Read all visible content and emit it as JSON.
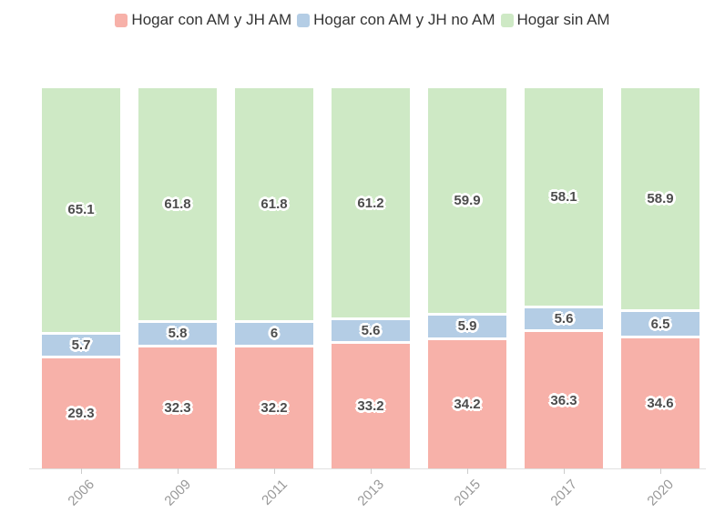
{
  "chart_data": {
    "type": "bar",
    "stacked": true,
    "unit": "percent",
    "title": "",
    "xlabel": "",
    "ylabel": "",
    "ylim": [
      0,
      100
    ],
    "grid": false,
    "legend_position": "top",
    "categories": [
      "2006",
      "2009",
      "2011",
      "2013",
      "2015",
      "2017",
      "2020"
    ],
    "series": [
      {
        "name": "Hogar con AM y JH AM",
        "color": "#F7B1A9",
        "values": [
          29.3,
          32.3,
          32.2,
          33.2,
          34.2,
          36.3,
          34.6
        ],
        "labels": [
          "29.3",
          "32.3",
          "32.2",
          "33.2",
          "34.2",
          "36.3",
          "34.6"
        ]
      },
      {
        "name": "Hogar con AM y JH no AM",
        "color": "#B4CDE5",
        "values": [
          5.7,
          5.8,
          6,
          5.6,
          5.9,
          5.6,
          6.5
        ],
        "labels": [
          "5.7",
          "5.8",
          "6",
          "5.6",
          "5.9",
          "5.6",
          "6.5"
        ]
      },
      {
        "name": "Hogar sin AM",
        "color": "#CEE9C5",
        "values": [
          65.1,
          61.8,
          61.8,
          61.2,
          59.9,
          58.1,
          58.9
        ],
        "labels": [
          "65.1",
          "61.8",
          "61.8",
          "61.2",
          "59.9",
          "58.1",
          "58.9"
        ]
      }
    ]
  },
  "legend": {
    "items": [
      {
        "label": "Hogar con AM y JH AM",
        "color": "#F7B1A9"
      },
      {
        "label": "Hogar con AM y JH no AM",
        "color": "#B4CDE5"
      },
      {
        "label": "Hogar sin AM",
        "color": "#CEE9C5"
      }
    ]
  },
  "style": {
    "value_label_color": "#4d4d4d",
    "legend_text_color": "#333333",
    "axis_label_color": "#999999",
    "axis_line_color": "#e0e0e0",
    "tick_color": "#cccccc",
    "background": "#ffffff"
  }
}
